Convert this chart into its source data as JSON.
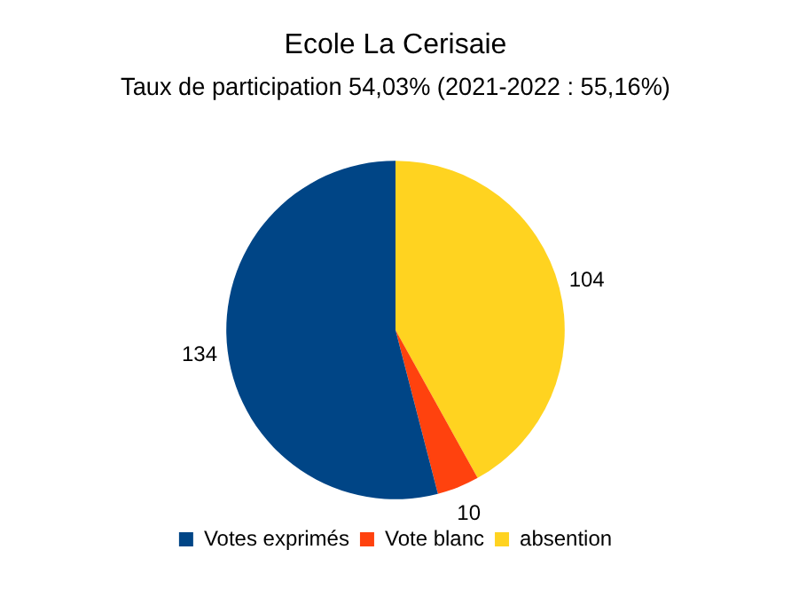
{
  "chart_data": {
    "type": "pie",
    "title": "Ecole La Cerisaie",
    "subtitle": "Taux de participation 54,03% (2021-2022 : 55,16%)",
    "categories": [
      "Votes exprimés",
      "Vote blanc",
      "absention"
    ],
    "values": [
      134,
      10,
      104
    ],
    "colors": [
      "#004586",
      "#ff420e",
      "#ffd320"
    ],
    "data_labels": true,
    "legend": "bottom"
  }
}
